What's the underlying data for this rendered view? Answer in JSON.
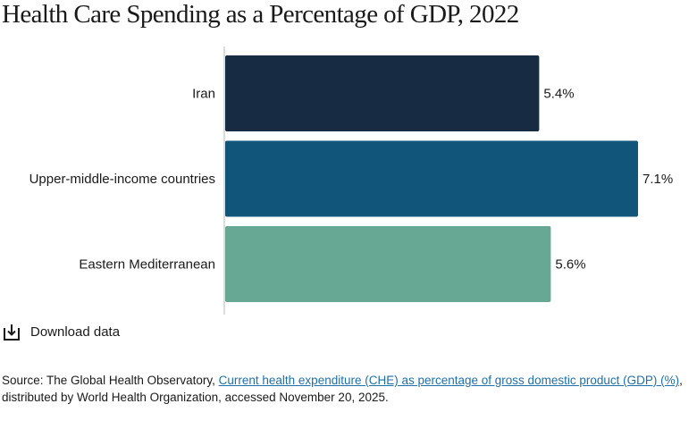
{
  "chart_data": {
    "type": "bar",
    "orientation": "horizontal",
    "title": "Health Care Spending as a Percentage of GDP, 2022",
    "categories": [
      "Iran",
      "Upper-middle-income countries",
      "Eastern Mediterranean"
    ],
    "values": [
      5.4,
      7.1,
      5.6
    ],
    "value_labels": [
      "5.4%",
      "7.1%",
      "5.6%"
    ],
    "colors": [
      "#172b43",
      "#12557a",
      "#67a894"
    ],
    "xlim": [
      0,
      7.1
    ],
    "grid": false,
    "legend": "none"
  },
  "download": {
    "label": "Download data",
    "icon": "download-icon"
  },
  "source": {
    "prefix": "Source: The Global Health Observatory, ",
    "link_text": "Current health expenditure (CHE) as percentage of gross domestic product (GDP) (%)",
    "suffix": ", distributed by World Health Organization, accessed November 20, 2025."
  }
}
